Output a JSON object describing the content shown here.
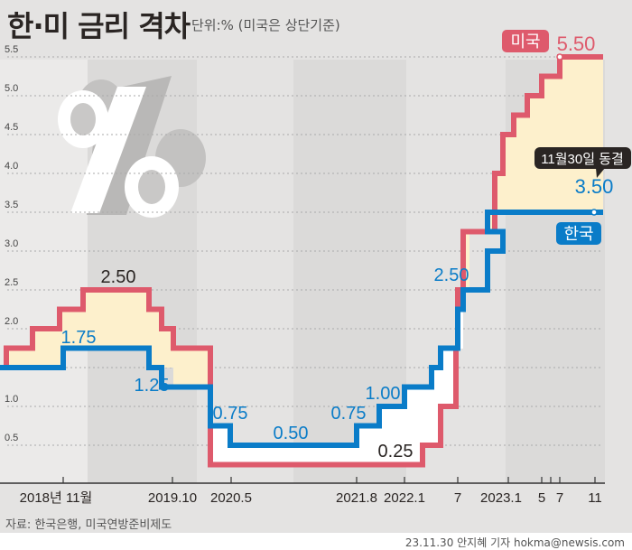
{
  "header": {
    "title": "한·미 금리 격차",
    "unit_note": "단위:% (미국은 상단기준)"
  },
  "footer": {
    "source": "자료: 한국은행, 미국연방준비제도",
    "credit": "23.11.30 안지혜 기자 hokma@newsis.com"
  },
  "colors": {
    "us": "#de5a6c",
    "korea": "#0a7cc8",
    "gap_fill": "#fdf0cc",
    "background": "#e4e3e2",
    "stripe": "#dbdad9",
    "plot_light": "#efeeed"
  },
  "icons": {
    "decoration": "percent-3d-icon"
  },
  "chart_data": {
    "type": "line",
    "step": true,
    "title": "한·미 금리 격차",
    "ylabel": "단위:%",
    "ylim": [
      0,
      5.5
    ],
    "y_ticks": [
      "0.5",
      "1.0",
      "2.0",
      "2.5",
      "3.0",
      "3.5",
      "4.0",
      "4.5",
      "5.0",
      "5.5"
    ],
    "x_ticks": [
      "2018년 11월",
      "2019.10",
      "2020.5",
      "2021.8",
      "2022.1",
      "7",
      "2023.1",
      "5",
      "7",
      "11"
    ],
    "grid": true,
    "series": [
      {
        "name": "미국",
        "points": [
          [
            "2018-06",
            1.5
          ],
          [
            "2018-06b",
            1.75
          ],
          [
            "2018-08",
            2.0
          ],
          [
            "2018-10",
            2.25
          ],
          [
            "2018-12",
            2.5
          ],
          [
            "2019-07",
            2.25
          ],
          [
            "2019-08",
            2.0
          ],
          [
            "2019-09",
            1.75
          ],
          [
            "2019-12",
            0.25
          ],
          [
            "2022-03",
            0.5
          ],
          [
            "2022-05",
            1.0
          ],
          [
            "2022-06",
            1.75
          ],
          [
            "2022-07",
            2.5
          ],
          [
            "2022-07b",
            3.25
          ],
          [
            "2022-09",
            4.0
          ],
          [
            "2022-11",
            4.5
          ],
          [
            "2022-12",
            4.75
          ],
          [
            "2023-02",
            5.0
          ],
          [
            "2023-03",
            5.25
          ],
          [
            "2023-07",
            5.5
          ],
          [
            "2023-11",
            5.5
          ]
        ]
      },
      {
        "name": "한국",
        "points": [
          [
            "2018-06",
            1.5
          ],
          [
            "2018-11",
            1.75
          ],
          [
            "2019-07",
            1.5
          ],
          [
            "2019-08",
            1.25
          ],
          [
            "2020-03",
            0.75
          ],
          [
            "2020-05",
            0.5
          ],
          [
            "2021-08",
            0.75
          ],
          [
            "2021-11",
            1.0
          ],
          [
            "2022-01",
            1.25
          ],
          [
            "2022-04",
            1.5
          ],
          [
            "2022-05",
            1.75
          ],
          [
            "2022-07",
            2.25
          ],
          [
            "2022-07b",
            2.5
          ],
          [
            "2022-10",
            3.0
          ],
          [
            "2022-11",
            3.25
          ],
          [
            "2023-01",
            3.5
          ],
          [
            "2023-11",
            3.5
          ]
        ]
      }
    ],
    "annotations": {
      "us_badge": "미국",
      "korea_badge": "한국",
      "us_latest": "5.50",
      "korea_latest": "3.50",
      "freeze_callout": "11월30일 동결",
      "us_2018_peak": "2.50",
      "kr_2018": "1.75",
      "kr_2019": "1.25",
      "kr_2020a": "0.75",
      "kr_2020b": "0.50",
      "kr_2021a": "0.75",
      "kr_2021b": "1.00",
      "us_2021": "0.25",
      "kr_2022": "2.50"
    }
  }
}
